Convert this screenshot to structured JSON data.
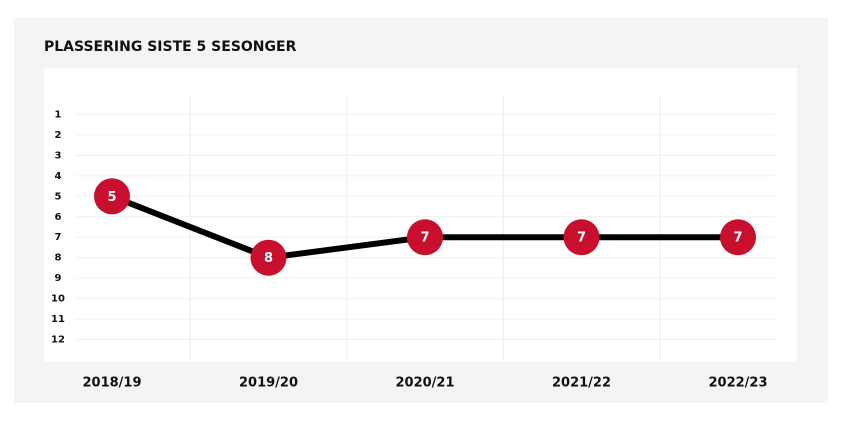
{
  "chart_data": {
    "type": "line",
    "title": "PLASSERING SISTE 5 SESONGER",
    "categories": [
      "2018/19",
      "2019/20",
      "2020/21",
      "2021/22",
      "2022/23"
    ],
    "values": [
      5,
      8,
      7,
      7,
      7
    ],
    "line_color": "#000000",
    "marker_color": "#c8102e",
    "ylim": [
      13,
      0
    ],
    "yticks": [
      1,
      2,
      3,
      4,
      5,
      6,
      7,
      8,
      9,
      10,
      11,
      12
    ],
    "grid": true
  }
}
